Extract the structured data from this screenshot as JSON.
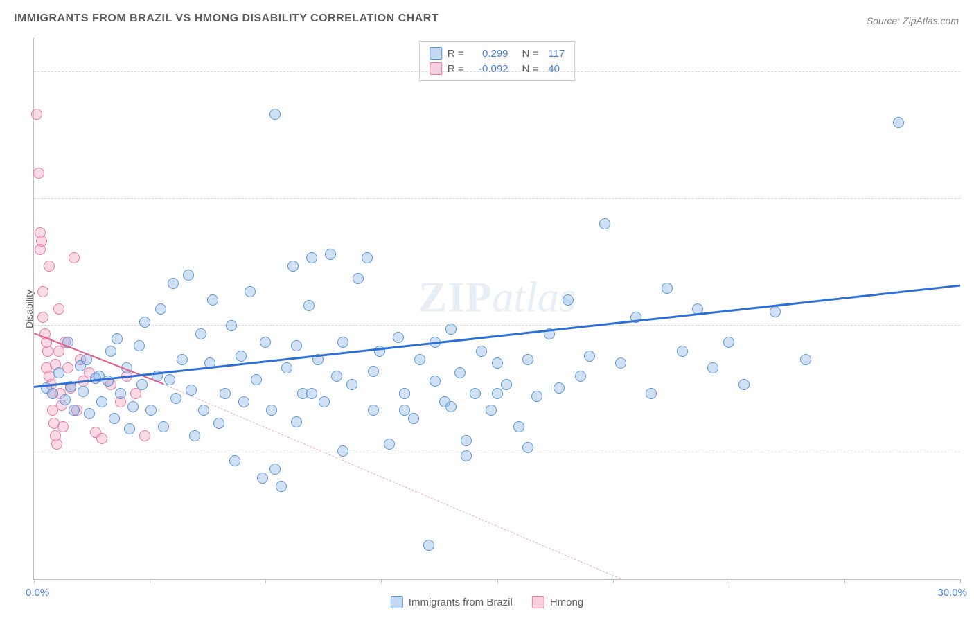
{
  "title": "IMMIGRANTS FROM BRAZIL VS HMONG DISABILITY CORRELATION CHART",
  "source": "Source: ZipAtlas.com",
  "ylabel": "Disability",
  "watermark_zip": "ZIP",
  "watermark_atlas": "atlas",
  "chart": {
    "type": "scatter",
    "xlim": [
      0,
      30
    ],
    "ylim": [
      0,
      32
    ],
    "xticks_pct": [
      0,
      12.5,
      25,
      37.5,
      50,
      62.5,
      75,
      87.5,
      100
    ],
    "yticks": [
      7.5,
      15.0,
      22.5,
      30.0
    ],
    "xorigin_label": "0.0%",
    "xmax_label": "30.0%",
    "grid_color": "#d8d8d8",
    "axis_color": "#c0c0c0",
    "background_color": "#ffffff"
  },
  "series": {
    "blue": {
      "label": "Immigrants from Brazil",
      "color_fill": "rgba(120,170,230,0.35)",
      "color_stroke": "#5a96d6",
      "marker_size": 16,
      "r_label": "R =",
      "r_value": "0.299",
      "n_label": "N =",
      "n_value": "117",
      "trend": {
        "x1": 0,
        "y1": 11.3,
        "x2": 30,
        "y2": 17.3,
        "color": "#2e6fd6",
        "width": 3,
        "dash": "solid"
      },
      "points": [
        [
          0.4,
          11.3
        ],
        [
          0.6,
          11.0
        ],
        [
          0.8,
          12.2
        ],
        [
          1.0,
          10.6
        ],
        [
          1.1,
          14.0
        ],
        [
          1.2,
          11.4
        ],
        [
          1.3,
          10.0
        ],
        [
          1.5,
          12.6
        ],
        [
          1.6,
          11.1
        ],
        [
          1.7,
          13.0
        ],
        [
          1.8,
          9.8
        ],
        [
          2.0,
          11.9
        ],
        [
          2.1,
          12.0
        ],
        [
          2.2,
          10.5
        ],
        [
          2.4,
          11.7
        ],
        [
          2.5,
          13.5
        ],
        [
          2.6,
          9.5
        ],
        [
          2.7,
          14.2
        ],
        [
          2.8,
          11.0
        ],
        [
          3.0,
          12.5
        ],
        [
          3.1,
          8.9
        ],
        [
          3.2,
          10.2
        ],
        [
          3.4,
          13.8
        ],
        [
          3.5,
          11.5
        ],
        [
          3.6,
          15.2
        ],
        [
          3.8,
          10.0
        ],
        [
          4.0,
          12.0
        ],
        [
          4.1,
          16.0
        ],
        [
          4.2,
          9.0
        ],
        [
          4.4,
          11.8
        ],
        [
          4.5,
          17.5
        ],
        [
          4.6,
          10.7
        ],
        [
          4.8,
          13.0
        ],
        [
          5.0,
          18.0
        ],
        [
          5.1,
          11.2
        ],
        [
          5.2,
          8.5
        ],
        [
          5.4,
          14.5
        ],
        [
          5.5,
          10.0
        ],
        [
          5.7,
          12.8
        ],
        [
          5.8,
          16.5
        ],
        [
          6.0,
          9.2
        ],
        [
          6.2,
          11.0
        ],
        [
          6.4,
          15.0
        ],
        [
          6.5,
          7.0
        ],
        [
          6.7,
          13.2
        ],
        [
          6.8,
          10.5
        ],
        [
          7.0,
          17.0
        ],
        [
          7.2,
          11.8
        ],
        [
          7.4,
          6.0
        ],
        [
          7.5,
          14.0
        ],
        [
          7.7,
          10.0
        ],
        [
          7.8,
          6.5
        ],
        [
          8.0,
          5.5
        ],
        [
          8.2,
          12.5
        ],
        [
          8.4,
          18.5
        ],
        [
          8.5,
          9.3
        ],
        [
          8.7,
          11.0
        ],
        [
          8.9,
          16.2
        ],
        [
          9.0,
          19.0
        ],
        [
          9.2,
          13.0
        ],
        [
          9.4,
          10.5
        ],
        [
          9.6,
          19.2
        ],
        [
          9.8,
          12.0
        ],
        [
          10.0,
          7.6
        ],
        [
          10.3,
          11.5
        ],
        [
          10.5,
          17.8
        ],
        [
          10.8,
          19.0
        ],
        [
          11.0,
          10.0
        ],
        [
          11.2,
          13.5
        ],
        [
          11.5,
          8.0
        ],
        [
          11.8,
          14.3
        ],
        [
          12.0,
          11.0
        ],
        [
          12.3,
          9.5
        ],
        [
          12.5,
          13.0
        ],
        [
          12.8,
          2.0
        ],
        [
          13.0,
          11.7
        ],
        [
          13.3,
          10.5
        ],
        [
          13.5,
          14.8
        ],
        [
          13.8,
          12.2
        ],
        [
          14.0,
          8.2
        ],
        [
          14.3,
          11.0
        ],
        [
          14.5,
          13.5
        ],
        [
          14.8,
          10.0
        ],
        [
          15.0,
          12.8
        ],
        [
          15.3,
          11.5
        ],
        [
          15.7,
          9.0
        ],
        [
          16.0,
          13.0
        ],
        [
          16.3,
          10.8
        ],
        [
          16.7,
          14.5
        ],
        [
          17.0,
          11.3
        ],
        [
          17.3,
          16.5
        ],
        [
          17.7,
          12.0
        ],
        [
          18.0,
          13.2
        ],
        [
          18.5,
          21.0
        ],
        [
          19.0,
          12.8
        ],
        [
          19.5,
          15.5
        ],
        [
          20.0,
          11.0
        ],
        [
          20.5,
          17.2
        ],
        [
          21.0,
          13.5
        ],
        [
          21.5,
          16.0
        ],
        [
          22.0,
          12.5
        ],
        [
          22.5,
          14.0
        ],
        [
          23.0,
          11.5
        ],
        [
          24.0,
          15.8
        ],
        [
          25.0,
          13.0
        ],
        [
          28.0,
          27.0
        ],
        [
          7.8,
          27.5
        ],
        [
          14.0,
          7.3
        ],
        [
          15.0,
          11.0
        ],
        [
          16.0,
          7.8
        ],
        [
          8.5,
          13.8
        ],
        [
          9.0,
          11.0
        ],
        [
          10.0,
          14.0
        ],
        [
          11.0,
          12.3
        ],
        [
          12.0,
          10.0
        ],
        [
          13.0,
          14.0
        ],
        [
          13.5,
          10.2
        ]
      ]
    },
    "pink": {
      "label": "Hmong",
      "color_fill": "rgba(240,150,180,0.35)",
      "color_stroke": "#e67ba5",
      "marker_size": 16,
      "r_label": "R =",
      "r_value": "-0.092",
      "n_label": "N =",
      "n_value": "40",
      "trend_solid": {
        "x1": 0,
        "y1": 14.5,
        "x2": 4.2,
        "y2": 11.5,
        "color": "#e55a8a",
        "width": 2.5,
        "dash": "solid"
      },
      "trend_dash": {
        "x1": 4.2,
        "y1": 11.5,
        "x2": 19,
        "y2": 0,
        "color": "#f2a7c0",
        "width": 1.5,
        "dash": "dashed"
      },
      "points": [
        [
          0.1,
          27.5
        ],
        [
          0.15,
          24.0
        ],
        [
          0.2,
          20.5
        ],
        [
          0.2,
          19.5
        ],
        [
          0.25,
          20.0
        ],
        [
          0.3,
          17.0
        ],
        [
          0.3,
          15.5
        ],
        [
          0.35,
          14.5
        ],
        [
          0.4,
          14.0
        ],
        [
          0.4,
          12.5
        ],
        [
          0.45,
          13.5
        ],
        [
          0.5,
          12.0
        ],
        [
          0.5,
          18.5
        ],
        [
          0.55,
          11.5
        ],
        [
          0.6,
          11.0
        ],
        [
          0.6,
          10.0
        ],
        [
          0.65,
          9.2
        ],
        [
          0.7,
          12.7
        ],
        [
          0.7,
          8.5
        ],
        [
          0.75,
          8.0
        ],
        [
          0.8,
          13.5
        ],
        [
          0.8,
          16.0
        ],
        [
          0.85,
          11.0
        ],
        [
          0.9,
          10.3
        ],
        [
          0.95,
          9.0
        ],
        [
          1.0,
          14.0
        ],
        [
          1.1,
          12.5
        ],
        [
          1.2,
          11.3
        ],
        [
          1.3,
          19.0
        ],
        [
          1.4,
          10.0
        ],
        [
          1.5,
          13.0
        ],
        [
          1.6,
          11.7
        ],
        [
          1.8,
          12.2
        ],
        [
          2.0,
          8.7
        ],
        [
          2.2,
          8.3
        ],
        [
          2.5,
          11.5
        ],
        [
          2.8,
          10.5
        ],
        [
          3.0,
          12.0
        ],
        [
          3.3,
          11.0
        ],
        [
          3.6,
          8.5
        ]
      ]
    }
  }
}
